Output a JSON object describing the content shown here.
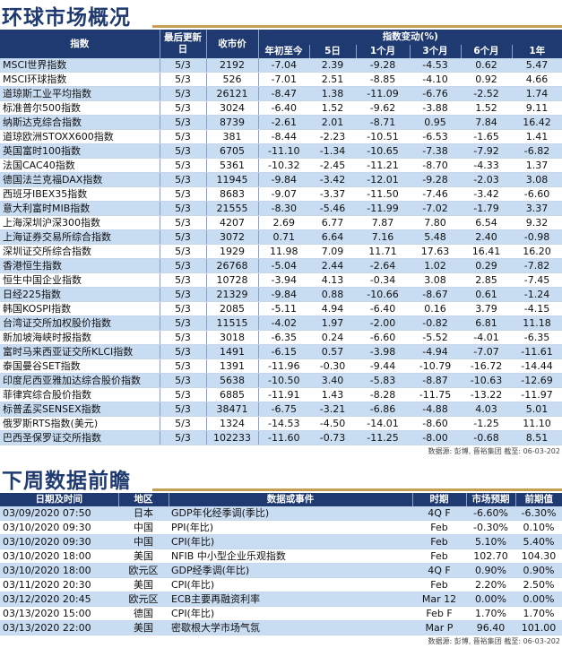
{
  "market": {
    "title": "环球市场概况",
    "headers": {
      "index": "指数",
      "last_update": "最后更新日",
      "close": "收市价",
      "change_group": "指数变动(%)",
      "ytd": "年初至今",
      "d5": "5日",
      "m1": "1个月",
      "m3": "3个月",
      "m6": "6个月",
      "y1": "1年"
    },
    "rows": [
      {
        "name": "MSCI世界指数",
        "date": "5/3",
        "close": "2192",
        "ytd": "-7.04",
        "d5": "2.39",
        "m1": "-9.28",
        "m3": "-4.53",
        "m6": "0.62",
        "y1": "5.47"
      },
      {
        "name": "MSCI环球指数",
        "date": "5/3",
        "close": "526",
        "ytd": "-7.01",
        "d5": "2.51",
        "m1": "-8.85",
        "m3": "-4.10",
        "m6": "0.92",
        "y1": "4.66"
      },
      {
        "name": "道琼斯工业平均指数",
        "date": "5/3",
        "close": "26121",
        "ytd": "-8.47",
        "d5": "1.38",
        "m1": "-11.09",
        "m3": "-6.76",
        "m6": "-2.52",
        "y1": "1.74"
      },
      {
        "name": "标准普尔500指数",
        "date": "5/3",
        "close": "3024",
        "ytd": "-6.40",
        "d5": "1.52",
        "m1": "-9.62",
        "m3": "-3.88",
        "m6": "1.52",
        "y1": "9.11"
      },
      {
        "name": "纳斯达克综合指数",
        "date": "5/3",
        "close": "8739",
        "ytd": "-2.61",
        "d5": "2.01",
        "m1": "-8.71",
        "m3": "0.95",
        "m6": "7.84",
        "y1": "16.42"
      },
      {
        "name": "道琼欧洲STOXX600指数",
        "date": "5/3",
        "close": "381",
        "ytd": "-8.44",
        "d5": "-2.23",
        "m1": "-10.51",
        "m3": "-6.53",
        "m6": "-1.65",
        "y1": "1.41"
      },
      {
        "name": "英国富时100指数",
        "date": "5/3",
        "close": "6705",
        "ytd": "-11.10",
        "d5": "-1.34",
        "m1": "-10.65",
        "m3": "-7.38",
        "m6": "-7.92",
        "y1": "-6.82"
      },
      {
        "name": "法国CAC40指数",
        "date": "5/3",
        "close": "5361",
        "ytd": "-10.32",
        "d5": "-2.45",
        "m1": "-11.21",
        "m3": "-8.70",
        "m6": "-4.33",
        "y1": "1.37"
      },
      {
        "name": "德国法兰克福DAX指数",
        "date": "5/3",
        "close": "11945",
        "ytd": "-9.84",
        "d5": "-3.42",
        "m1": "-12.01",
        "m3": "-9.28",
        "m6": "-2.03",
        "y1": "3.08"
      },
      {
        "name": "西班牙IBEX35指数",
        "date": "5/3",
        "close": "8683",
        "ytd": "-9.07",
        "d5": "-3.37",
        "m1": "-11.50",
        "m3": "-7.46",
        "m6": "-3.42",
        "y1": "-6.60"
      },
      {
        "name": "意大利富时MIB指数",
        "date": "5/3",
        "close": "21555",
        "ytd": "-8.30",
        "d5": "-5.46",
        "m1": "-11.99",
        "m3": "-7.02",
        "m6": "-1.79",
        "y1": "3.37"
      },
      {
        "name": "上海深圳沪深300指数",
        "date": "5/3",
        "close": "4207",
        "ytd": "2.69",
        "d5": "6.77",
        "m1": "7.87",
        "m3": "7.80",
        "m6": "6.54",
        "y1": "9.32"
      },
      {
        "name": "上海证券交易所综合指数",
        "date": "5/3",
        "close": "3072",
        "ytd": "0.71",
        "d5": "6.64",
        "m1": "7.16",
        "m3": "5.48",
        "m6": "2.40",
        "y1": "-0.98"
      },
      {
        "name": "深圳证交所综合指数",
        "date": "5/3",
        "close": "1929",
        "ytd": "11.98",
        "d5": "7.09",
        "m1": "11.71",
        "m3": "17.63",
        "m6": "16.41",
        "y1": "16.20"
      },
      {
        "name": "香港恒生指数",
        "date": "5/3",
        "close": "26768",
        "ytd": "-5.04",
        "d5": "2.44",
        "m1": "-2.64",
        "m3": "1.02",
        "m6": "0.29",
        "y1": "-7.82"
      },
      {
        "name": "恒生中国企业指数",
        "date": "5/3",
        "close": "10728",
        "ytd": "-3.94",
        "d5": "4.13",
        "m1": "-0.34",
        "m3": "3.08",
        "m6": "2.85",
        "y1": "-7.45"
      },
      {
        "name": "日经225指数",
        "date": "5/3",
        "close": "21329",
        "ytd": "-9.84",
        "d5": "0.88",
        "m1": "-10.66",
        "m3": "-8.67",
        "m6": "0.61",
        "y1": "-1.24"
      },
      {
        "name": "韩国KOSPI指数",
        "date": "5/3",
        "close": "2085",
        "ytd": "-5.11",
        "d5": "4.94",
        "m1": "-6.40",
        "m3": "0.16",
        "m6": "3.79",
        "y1": "-4.15"
      },
      {
        "name": "台湾证交所加权股价指数",
        "date": "5/3",
        "close": "11515",
        "ytd": "-4.02",
        "d5": "1.97",
        "m1": "-2.00",
        "m3": "-0.82",
        "m6": "6.81",
        "y1": "11.18"
      },
      {
        "name": "新加坡海峡时报指数",
        "date": "5/3",
        "close": "3018",
        "ytd": "-6.35",
        "d5": "0.24",
        "m1": "-6.60",
        "m3": "-5.52",
        "m6": "-4.01",
        "y1": "-6.35"
      },
      {
        "name": "富时马来西亚证交所KLCI指数",
        "date": "5/3",
        "close": "1491",
        "ytd": "-6.15",
        "d5": "0.57",
        "m1": "-3.98",
        "m3": "-4.94",
        "m6": "-7.07",
        "y1": "-11.61"
      },
      {
        "name": "泰国曼谷SET指数",
        "date": "5/3",
        "close": "1391",
        "ytd": "-11.96",
        "d5": "-0.30",
        "m1": "-9.44",
        "m3": "-10.79",
        "m6": "-16.72",
        "y1": "-14.44"
      },
      {
        "name": "印度尼西亚雅加达综合股价指数",
        "date": "5/3",
        "close": "5638",
        "ytd": "-10.50",
        "d5": "3.40",
        "m1": "-5.83",
        "m3": "-8.87",
        "m6": "-10.63",
        "y1": "-12.69"
      },
      {
        "name": "菲律宾综合股价指数",
        "date": "5/3",
        "close": "6885",
        "ytd": "-11.91",
        "d5": "1.43",
        "m1": "-8.28",
        "m3": "-11.75",
        "m6": "-13.22",
        "y1": "-11.97"
      },
      {
        "name": "标普孟买SENSEX指数",
        "date": "5/3",
        "close": "38471",
        "ytd": "-6.75",
        "d5": "-3.21",
        "m1": "-6.86",
        "m3": "-4.88",
        "m6": "4.03",
        "y1": "5.01"
      },
      {
        "name": "俄罗斯RTS指数(美元)",
        "date": "5/3",
        "close": "1324",
        "ytd": "-14.53",
        "d5": "-4.50",
        "m1": "-14.01",
        "m3": "-8.60",
        "m6": "-1.25",
        "y1": "11.10"
      },
      {
        "name": "巴西圣保罗证交所指数",
        "date": "5/3",
        "close": "102233",
        "ytd": "-11.60",
        "d5": "-0.73",
        "m1": "-11.25",
        "m3": "-8.00",
        "m6": "-0.68",
        "y1": "8.51"
      }
    ],
    "source": "数据源: 彭博, 晋裕集团 截至: 06-03-202"
  },
  "preview": {
    "title": "下周数据前瞻",
    "headers": {
      "datetime": "日期及时间",
      "region": "地区",
      "event": "数据或事件",
      "period": "时期",
      "forecast": "市场预期",
      "previous": "前期值"
    },
    "rows": [
      {
        "datetime": "03/09/2020 07:50",
        "region": "日本",
        "event": "GDP年化经季调(季比)",
        "period": "4Q F",
        "forecast": "-6.60%",
        "previous": "-6.30%"
      },
      {
        "datetime": "03/10/2020 09:30",
        "region": "中国",
        "event": "PPI(年比)",
        "period": "Feb",
        "forecast": "-0.30%",
        "previous": "0.10%"
      },
      {
        "datetime": "03/10/2020 09:30",
        "region": "中国",
        "event": "CPI(年比)",
        "period": "Feb",
        "forecast": "5.10%",
        "previous": "5.40%"
      },
      {
        "datetime": "03/10/2020 18:00",
        "region": "美国",
        "event": "NFIB 中小型企业乐观指数",
        "period": "Feb",
        "forecast": "102.70",
        "previous": "104.30"
      },
      {
        "datetime": "03/10/2020 18:00",
        "region": "欧元区",
        "event": "GDP经季调(年比)",
        "period": "4Q F",
        "forecast": "0.90%",
        "previous": "0.90%"
      },
      {
        "datetime": "03/11/2020 20:30",
        "region": "美国",
        "event": "CPI(年比)",
        "period": "Feb",
        "forecast": "2.20%",
        "previous": "2.50%"
      },
      {
        "datetime": "03/12/2020 20:45",
        "region": "欧元区",
        "event": "ECB主要再融资利率",
        "period": "Mar 12",
        "forecast": "0.00%",
        "previous": "0.00%"
      },
      {
        "datetime": "03/13/2020 15:00",
        "region": "德国",
        "event": "CPI(年比)",
        "period": "Feb F",
        "forecast": "1.70%",
        "previous": "1.70%"
      },
      {
        "datetime": "03/13/2020 22:00",
        "region": "美国",
        "event": "密歇根大学市场气氛",
        "period": "Mar P",
        "forecast": "96.40",
        "previous": "101.00"
      }
    ],
    "source": "数据源: 彭博, 晋裕集团 截至: 06-03-202"
  }
}
